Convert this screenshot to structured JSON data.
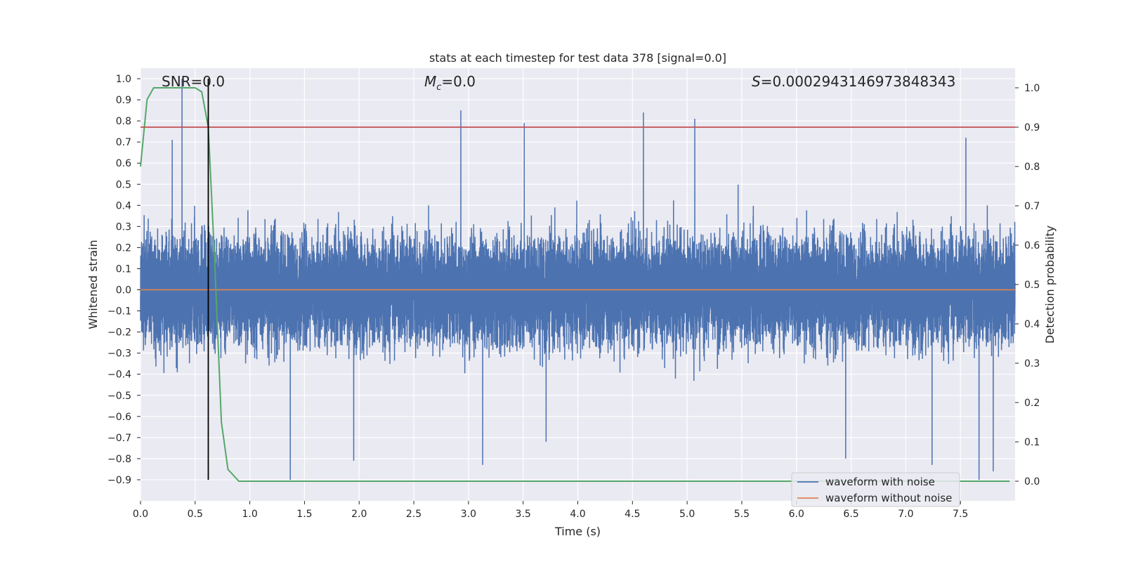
{
  "chart_data": {
    "type": "line",
    "title": "stats at each timestep for test data 378 [signal=0.0]",
    "xlabel": "Time (s)",
    "ylabel": "Whitened strain",
    "y2label": "Detection probability",
    "xlim": [
      0.0,
      8.0
    ],
    "ylim": [
      -1.0,
      1.05
    ],
    "y2lim": [
      -0.05,
      1.05
    ],
    "x_ticks": [
      "0.0",
      "0.5",
      "1.0",
      "1.5",
      "2.0",
      "2.5",
      "3.0",
      "3.5",
      "4.0",
      "4.5",
      "5.0",
      "5.5",
      "6.0",
      "6.5",
      "7.0",
      "7.5"
    ],
    "y_ticks": [
      "1.0",
      "0.9",
      "0.8",
      "0.7",
      "0.6",
      "0.5",
      "0.4",
      "0.3",
      "0.2",
      "0.1",
      "0.0",
      "−0.1",
      "−0.2",
      "−0.3",
      "−0.4",
      "−0.5",
      "−0.6",
      "−0.7",
      "−0.8",
      "−0.9"
    ],
    "y2_ticks": [
      "1.0",
      "0.9",
      "0.8",
      "0.7",
      "0.6",
      "0.5",
      "0.4",
      "0.3",
      "0.2",
      "0.1",
      "0.0"
    ],
    "grid": true,
    "legend_position": "bottom-right",
    "annotations": {
      "snr": "SNR=0.0",
      "mc_symbol": "M",
      "mc_sub": "c",
      "mc_value": "=0.0",
      "s_symbol": "S",
      "s_value": "=0.0002943146973848343"
    },
    "threshold_line": {
      "axis": "y2",
      "value": 0.9,
      "color": "#c44e52"
    },
    "vertical_marker": {
      "x": 0.62,
      "y_from": -0.9,
      "y_to": 1.0,
      "color": "#000000"
    },
    "series": [
      {
        "name": "waveform with noise",
        "axis": "y",
        "color": "#4c72b0",
        "kind": "dense_noise",
        "duration": 8.0,
        "sample_rate": 2048,
        "envelope_typical": 0.35,
        "peaks": [
          {
            "x": 0.38,
            "y": 1.0
          },
          {
            "x": 2.93,
            "y": 0.85
          },
          {
            "x": 3.51,
            "y": 0.79
          },
          {
            "x": 4.6,
            "y": 0.84
          },
          {
            "x": 5.07,
            "y": 0.81
          },
          {
            "x": 7.55,
            "y": 0.72
          },
          {
            "x": 0.29,
            "y": 0.71
          },
          {
            "x": 1.37,
            "y": -0.9
          },
          {
            "x": 1.95,
            "y": -0.81
          },
          {
            "x": 3.13,
            "y": -0.83
          },
          {
            "x": 7.67,
            "y": -0.9
          },
          {
            "x": 7.8,
            "y": -0.86
          },
          {
            "x": 7.24,
            "y": -0.83
          },
          {
            "x": 6.45,
            "y": -0.8
          },
          {
            "x": 3.71,
            "y": -0.72
          }
        ]
      },
      {
        "name": "waveform without noise",
        "axis": "y",
        "color": "#dd8452",
        "kind": "flat",
        "value": 0.0
      },
      {
        "name": "",
        "axis": "y2",
        "color": "#55a868",
        "kind": "line",
        "x": [
          0.0,
          0.06,
          0.12,
          0.2,
          0.3,
          0.4,
          0.5,
          0.56,
          0.62,
          0.68,
          0.74,
          0.8,
          0.9,
          1.2,
          2.0,
          3.0,
          4.0,
          4.5,
          5.0,
          6.0,
          7.0,
          7.95
        ],
        "y": [
          0.8,
          0.97,
          1.0,
          1.0,
          1.0,
          1.0,
          1.0,
          0.99,
          0.9,
          0.55,
          0.15,
          0.03,
          0.0,
          0.0,
          0.0,
          0.0,
          0.0,
          0.0,
          0.0,
          0.0,
          0.0,
          0.0
        ]
      }
    ]
  }
}
